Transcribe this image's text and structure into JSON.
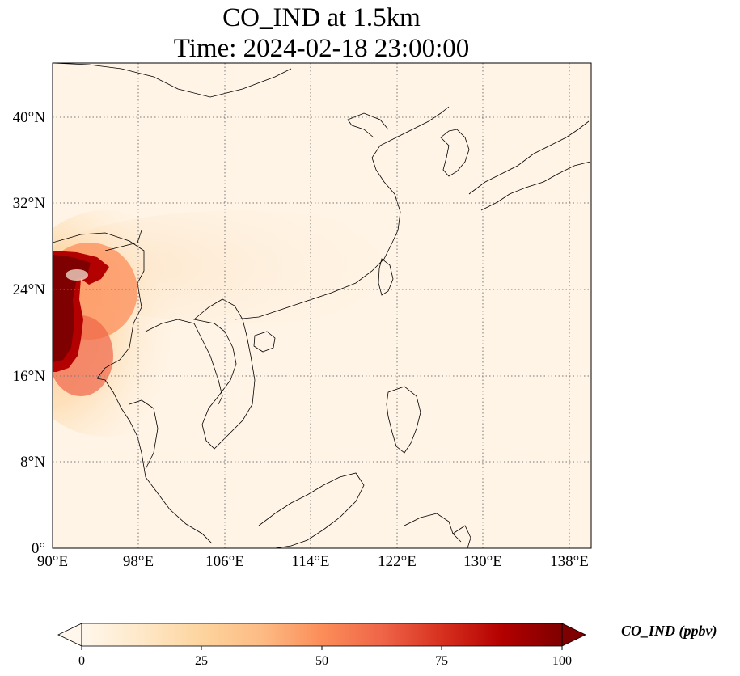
{
  "title": {
    "line1": "CO_IND at 1.5km",
    "line2": "Time: 2024-02-18 23:00:00"
  },
  "map": {
    "projection": "PlateCarree",
    "extent": {
      "lon_min": 90,
      "lon_max": 140,
      "lat_min": 0,
      "lat_max": 45
    },
    "lon_ticks": [
      {
        "value": 90,
        "label": "90°E"
      },
      {
        "value": 98,
        "label": "98°E"
      },
      {
        "value": 106,
        "label": "106°E"
      },
      {
        "value": 114,
        "label": "114°E"
      },
      {
        "value": 122,
        "label": "122°E"
      },
      {
        "value": 130,
        "label": "130°E"
      },
      {
        "value": 138,
        "label": "138°E"
      }
    ],
    "lat_ticks": [
      {
        "value": 0,
        "label": "0°"
      },
      {
        "value": 8,
        "label": "8°N"
      },
      {
        "value": 16,
        "label": "16°N"
      },
      {
        "value": 24,
        "label": "24°N"
      },
      {
        "value": 32,
        "label": "32°N"
      },
      {
        "value": 40,
        "label": "40°N"
      }
    ],
    "gridlines": "dotted",
    "coastlines": true,
    "borders": true
  },
  "colorbar": {
    "label": "CO_IND (ppbv)",
    "colormap": "OrRd",
    "vmin": 0,
    "vmax": 100,
    "extend": "both",
    "ticks": [
      {
        "value": 0,
        "label": "0"
      },
      {
        "value": 25,
        "label": "25"
      },
      {
        "value": 50,
        "label": "50"
      },
      {
        "value": 75,
        "label": "75"
      },
      {
        "value": 100,
        "label": "100"
      }
    ],
    "colors": [
      "#fff7ec",
      "#fee8c8",
      "#fdd49e",
      "#fdbb84",
      "#fc8d59",
      "#ef6548",
      "#d7301f",
      "#b30000",
      "#7f0000"
    ]
  }
}
